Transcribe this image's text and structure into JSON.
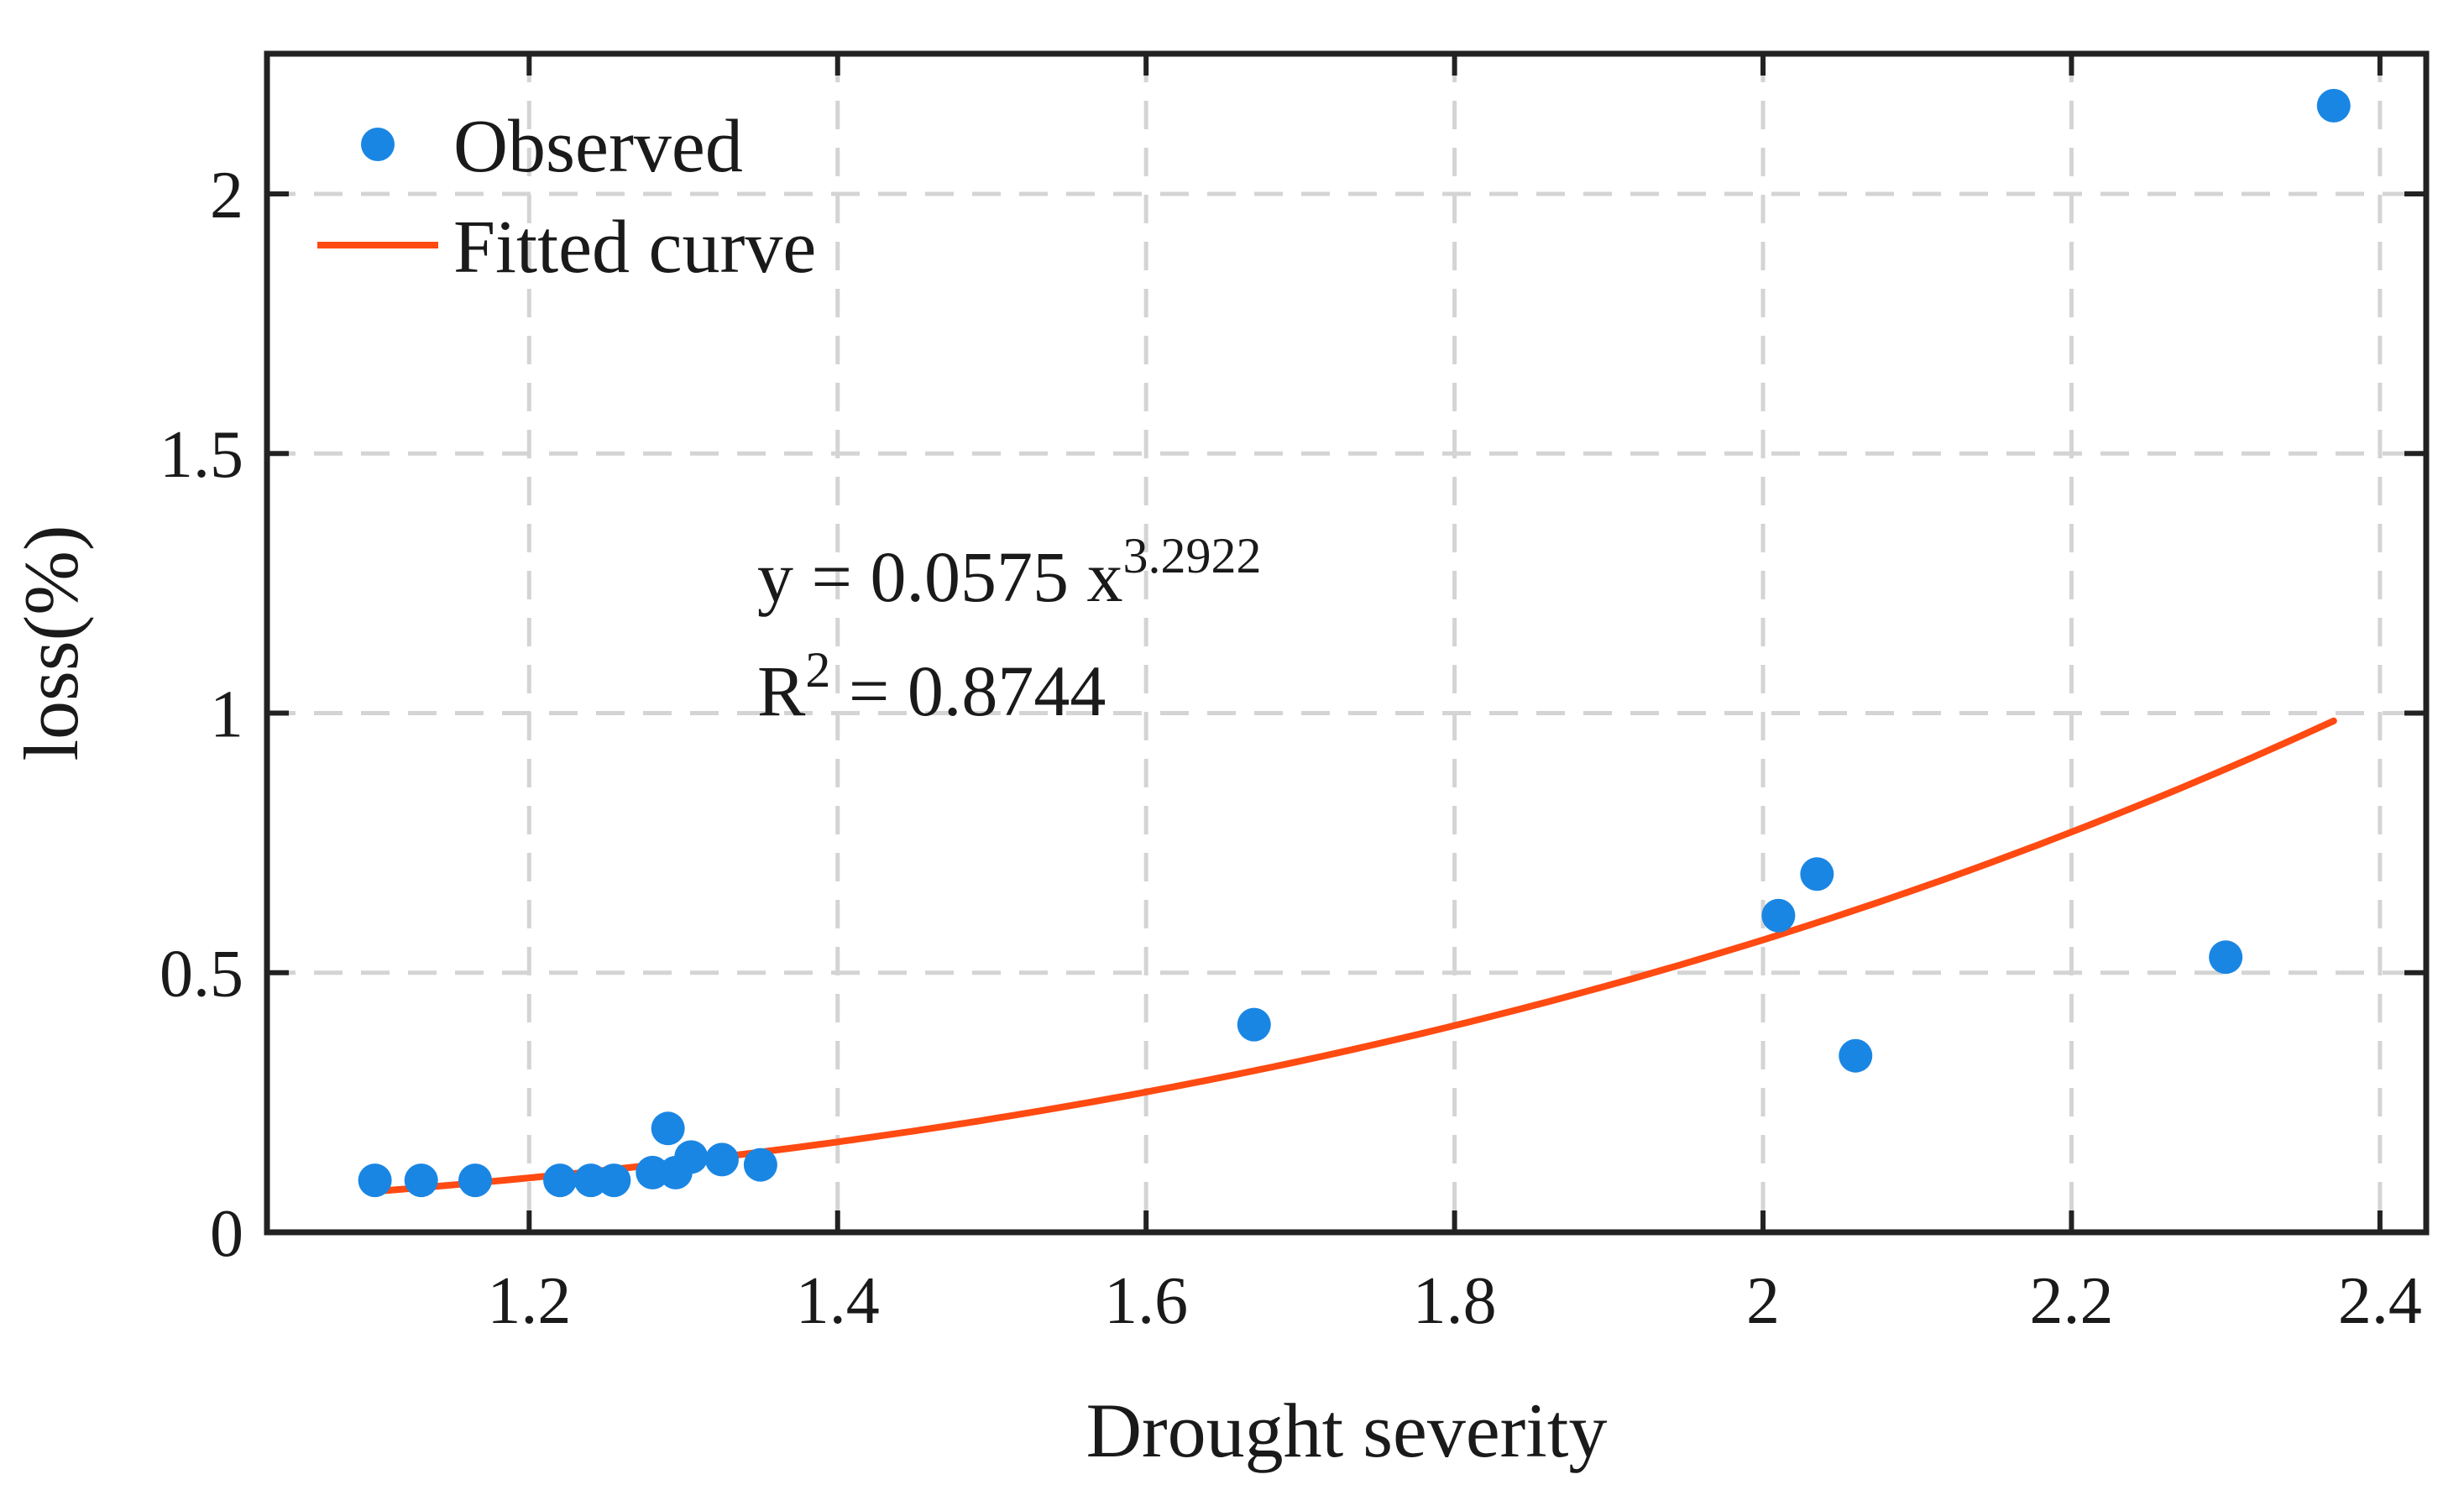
{
  "chart_data": {
    "type": "scatter",
    "xlabel": "Drought severity",
    "ylabel": "loss(%)",
    "xlim": [
      1.03,
      2.43
    ],
    "ylim": [
      0,
      2.27
    ],
    "xticks": [
      1.2,
      1.4,
      1.6,
      1.8,
      2.0,
      2.2,
      2.4
    ],
    "xtick_labels": [
      "1.2",
      "1.4",
      "1.6",
      "1.8",
      "2",
      "2.2",
      "2.4"
    ],
    "yticks": [
      0,
      0.5,
      1.0,
      1.5,
      2.0
    ],
    "ytick_labels": [
      "0",
      "0.5",
      "1",
      "1.5",
      "2"
    ],
    "grid": true,
    "legend_position": "top-left",
    "colors": {
      "observed": "#1a86e3",
      "fitted": "#ff4a12",
      "axis": "#222222",
      "grid": "#d4d4d4"
    },
    "series": [
      {
        "name": "Observed",
        "kind": "points",
        "x": [
          1.1,
          1.13,
          1.165,
          1.22,
          1.24,
          1.255,
          1.28,
          1.29,
          1.295,
          1.305,
          1.325,
          1.35,
          1.67,
          2.01,
          2.035,
          2.06,
          2.3,
          2.37
        ],
        "y": [
          0.1,
          0.1,
          0.1,
          0.1,
          0.1,
          0.1,
          0.115,
          0.2,
          0.115,
          0.145,
          0.14,
          0.13,
          0.4,
          0.61,
          0.69,
          0.34,
          0.53,
          2.17
        ]
      },
      {
        "name": "Fitted curve",
        "kind": "line",
        "model": {
          "a": 0.0575,
          "b": 3.2922,
          "x_start": 1.1,
          "x_end": 2.37
        }
      }
    ],
    "annotations": {
      "equation_base": "y = 0.0575 x",
      "equation_exp": "3.2922",
      "r2_base": "R",
      "r2_exp": "2",
      "r2_value": " = 0.8744"
    }
  }
}
